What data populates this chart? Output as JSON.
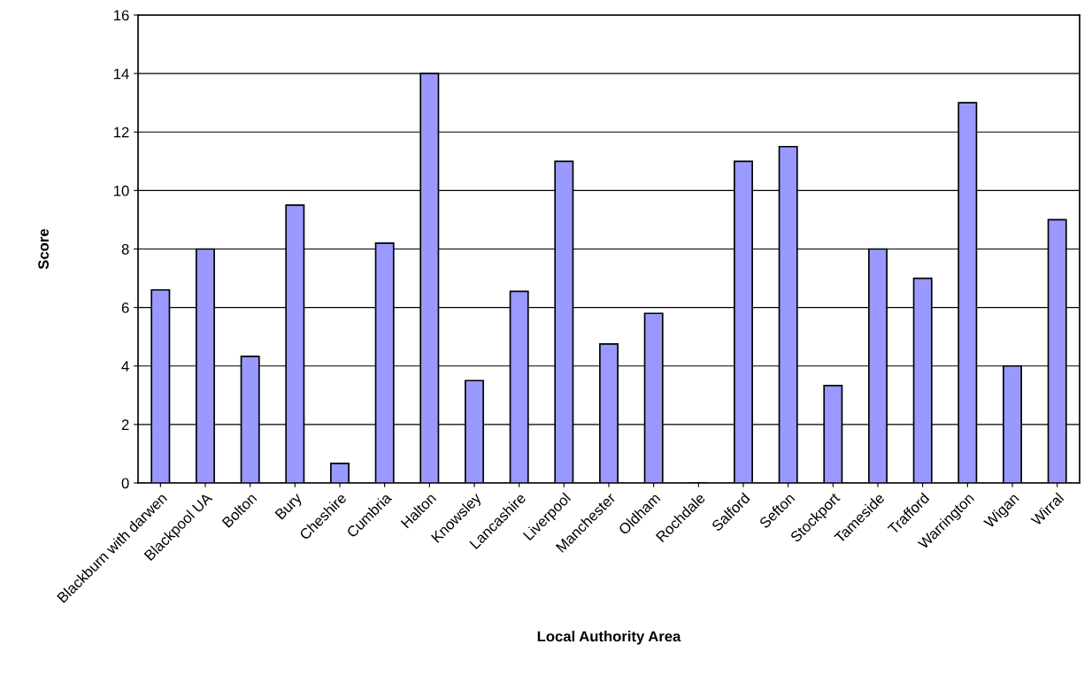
{
  "chart_data": {
    "type": "bar",
    "xlabel": "Local Authority Area",
    "ylabel": "Score",
    "categories": [
      "Blackburn with darwen",
      "Blackpool UA",
      "Bolton",
      "Bury",
      "Cheshire",
      "Cumbria",
      "Halton",
      "Knowsley",
      "Lancashire",
      "Liverpool",
      "Manchester",
      "Oldham",
      "Rochdale",
      "Salford",
      "Sefton",
      "Stockport",
      "Tameside",
      "Trafford",
      "Warrington",
      "Wigan",
      "Wirral"
    ],
    "values": [
      6.6,
      8,
      4.33,
      9.5,
      0.67,
      8.2,
      14,
      3.5,
      6.55,
      11,
      4.75,
      5.8,
      0,
      11,
      11.5,
      3.33,
      8,
      7,
      13,
      4,
      9
    ],
    "color": "#9999ff",
    "ylim": [
      0,
      16
    ],
    "yticks": [
      0,
      2,
      4,
      6,
      8,
      10,
      12,
      14,
      16
    ],
    "grid": "y",
    "legend": false
  }
}
